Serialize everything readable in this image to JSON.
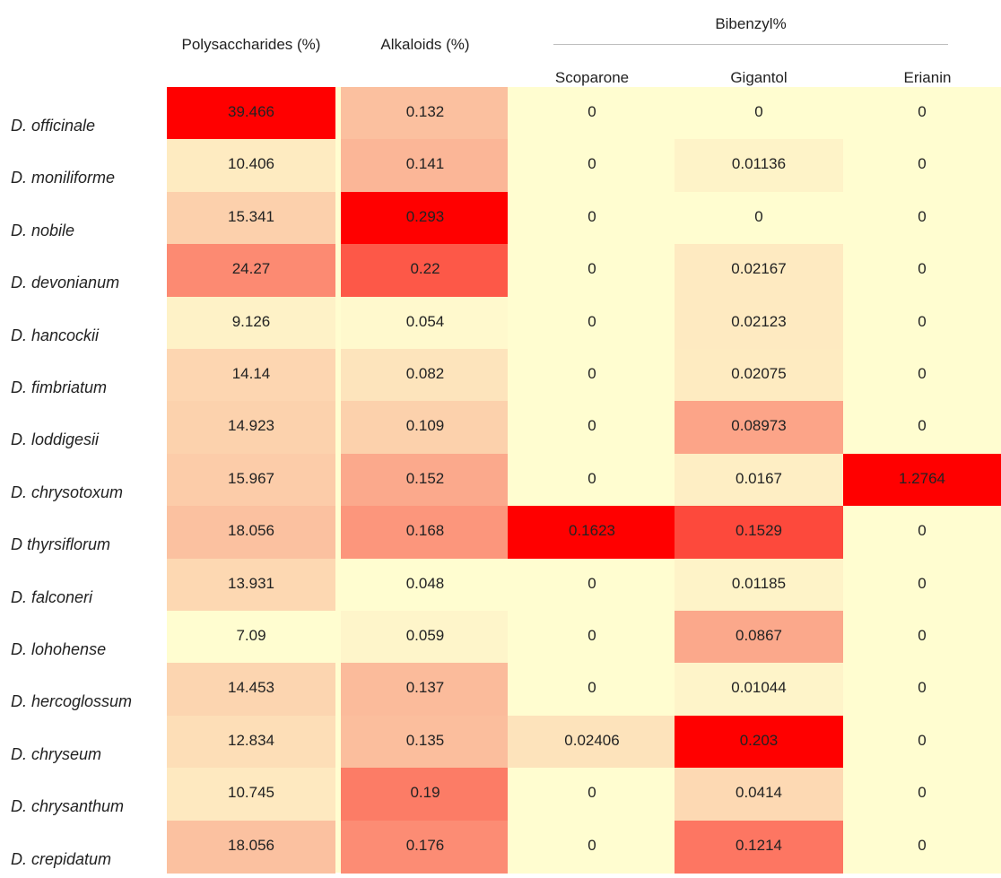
{
  "chart_data": {
    "type": "heatmap",
    "group_header": "Bibenzyl%",
    "columns": [
      "Polysaccharides (%)",
      "Alkaloids (%)",
      "Scoparone",
      "Gigantol",
      "Erianin"
    ],
    "rows": [
      "D. officinale",
      "D. moniliforme",
      "D. nobile",
      "D. devonianum",
      "D. hancockii",
      "D. fimbriatum",
      "D. loddigesii",
      "D. chrysotoxum",
      "D thyrsiflorum",
      "D. falconeri",
      "D. lohohense",
      "D. hercoglossum",
      "D. chryseum",
      "D. chrysanthum",
      "D. crepidatum"
    ],
    "values": [
      [
        "39.466",
        "0.132",
        "0",
        "0",
        "0"
      ],
      [
        "10.406",
        "0.141",
        "0",
        "0.01136",
        "0"
      ],
      [
        "15.341",
        "0.293",
        "0",
        "0",
        "0"
      ],
      [
        "24.27",
        "0.22",
        "0",
        "0.02167",
        "0"
      ],
      [
        "9.126",
        "0.054",
        "0",
        "0.02123",
        "0"
      ],
      [
        "14.14",
        "0.082",
        "0",
        "0.02075",
        "0"
      ],
      [
        "14.923",
        "0.109",
        "0",
        "0.08973",
        "0"
      ],
      [
        "15.967",
        "0.152",
        "0",
        "0.0167",
        "1.2764"
      ],
      [
        "18.056",
        "0.168",
        "0.1623",
        "0.1529",
        "0"
      ],
      [
        "13.931",
        "0.048",
        "0",
        "0.01185",
        "0"
      ],
      [
        "7.09",
        "0.059",
        "0",
        "0.0867",
        "0"
      ],
      [
        "14.453",
        "0.137",
        "0",
        "0.01044",
        "0"
      ],
      [
        "12.834",
        "0.135",
        "0.02406",
        "0.203",
        "0"
      ],
      [
        "10.745",
        "0.19",
        "0",
        "0.0414",
        "0"
      ],
      [
        "18.056",
        "0.176",
        "0",
        "0.1214",
        "0"
      ]
    ],
    "colors": {
      "low": "#fffdd0",
      "mid": "#fbbf9e",
      "high": "#ff0000"
    }
  }
}
